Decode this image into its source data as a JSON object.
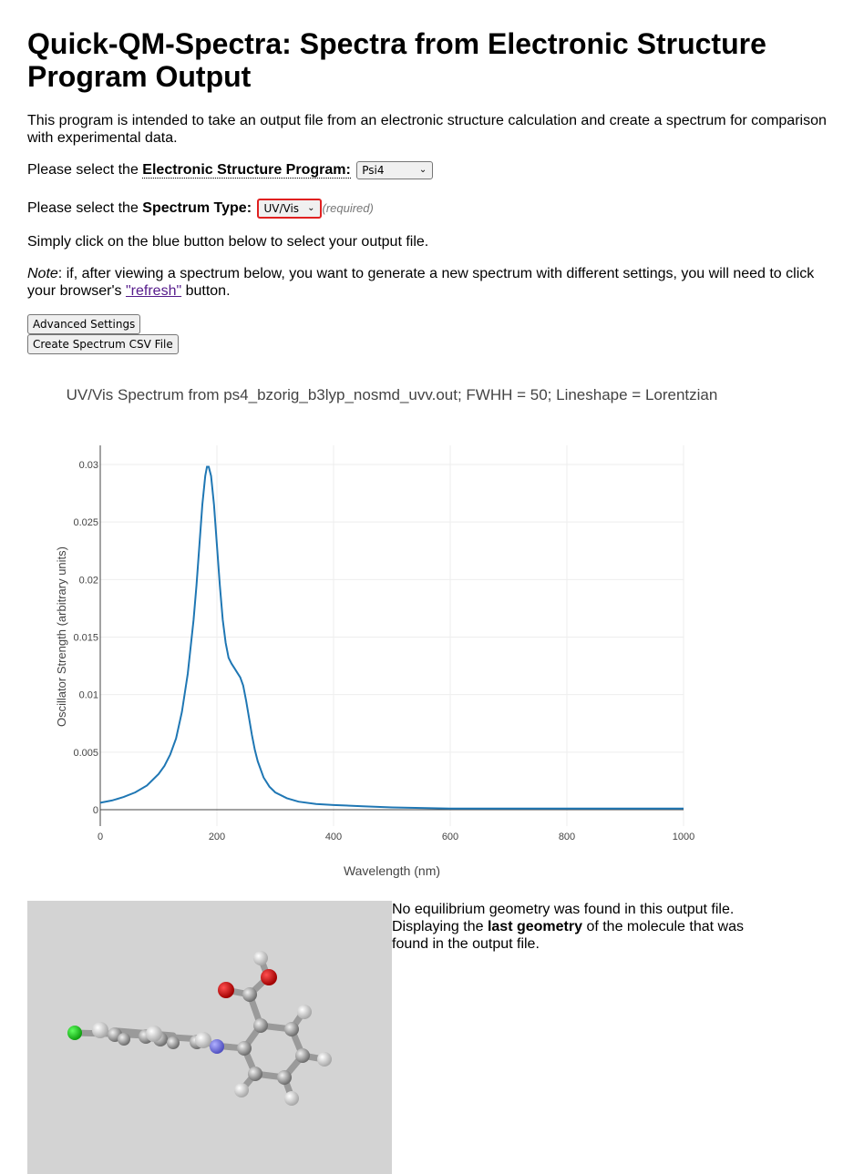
{
  "page": {
    "title": "Quick-QM-Spectra: Spectra from Electronic Structure Program Output",
    "intro": "This program is intended to take an output file from an electronic structure calculation and create a spectrum for comparison with experimental data.",
    "program_prefix": "Please select the ",
    "program_label": "Electronic Structure Program:",
    "program_value": "Psi4",
    "spectrum_prefix": "Please select the ",
    "spectrum_label": "Spectrum Type:",
    "spectrum_value": "UV/Vis",
    "required": "(required)",
    "click_text": "Simply click on the blue button below to select your output file.",
    "note_label": "Note",
    "note_text_1": ": if, after viewing a spectrum below, you want to generate a new spectrum with different settings, you will need to click your browser's ",
    "note_link": "\"refresh\"",
    "note_text_2": " button.",
    "advanced_button": "Advanced Settings",
    "csv_button": "Create Spectrum CSV File",
    "geometry_text_1": "No equilibrium geometry was found in this output file. Displaying the ",
    "geometry_bold": "last geometry",
    "geometry_text_2": " of the molecule that was found in the output file.",
    "colors": {
      "line": "#1f77b4",
      "select_border_required": "#e02020",
      "viewer_bg": "#d3d3d3"
    }
  },
  "chart_data": {
    "type": "line",
    "title": "UV/Vis Spectrum from ps4_bzorig_b3lyp_nosmd_uvv.out; FWHH = 50; Lineshape = Lorentzian",
    "xlabel": "Wavelength (nm)",
    "ylabel": "Oscillator Strength (arbitrary units)",
    "xlim": [
      0,
      1000
    ],
    "ylim": [
      0,
      0.03
    ],
    "x_ticks": [
      0,
      200,
      400,
      600,
      800,
      1000
    ],
    "y_ticks": [
      0,
      0.005,
      0.01,
      0.015,
      0.02,
      0.025,
      0.03
    ],
    "y_tick_labels": [
      "0",
      "0.005",
      "0.01",
      "0.015",
      "0.02",
      "0.025",
      "0.03"
    ],
    "grid": true,
    "series": [
      {
        "x": [
          0,
          20,
          40,
          60,
          80,
          100,
          110,
          120,
          130,
          140,
          150,
          160,
          165,
          170,
          175,
          180,
          183,
          186,
          190,
          195,
          200,
          205,
          210,
          215,
          220,
          225,
          230,
          235,
          240,
          245,
          250,
          255,
          260,
          265,
          270,
          280,
          290,
          300,
          320,
          340,
          370,
          400,
          450,
          500,
          600,
          700,
          800,
          900,
          1000
        ],
        "y": [
          0.0006,
          0.0008,
          0.0011,
          0.0015,
          0.0021,
          0.0031,
          0.0038,
          0.0048,
          0.0062,
          0.0085,
          0.0118,
          0.0165,
          0.0195,
          0.023,
          0.0265,
          0.029,
          0.0298,
          0.0298,
          0.029,
          0.0265,
          0.023,
          0.0195,
          0.0165,
          0.0145,
          0.0132,
          0.0127,
          0.0123,
          0.0119,
          0.0115,
          0.0108,
          0.0095,
          0.008,
          0.0065,
          0.0052,
          0.0042,
          0.0028,
          0.002,
          0.0015,
          0.001,
          0.0007,
          0.0005,
          0.0004,
          0.0003,
          0.0002,
          0.0001,
          0.0001,
          0.0001,
          0.0001,
          0.0001
        ]
      }
    ]
  }
}
